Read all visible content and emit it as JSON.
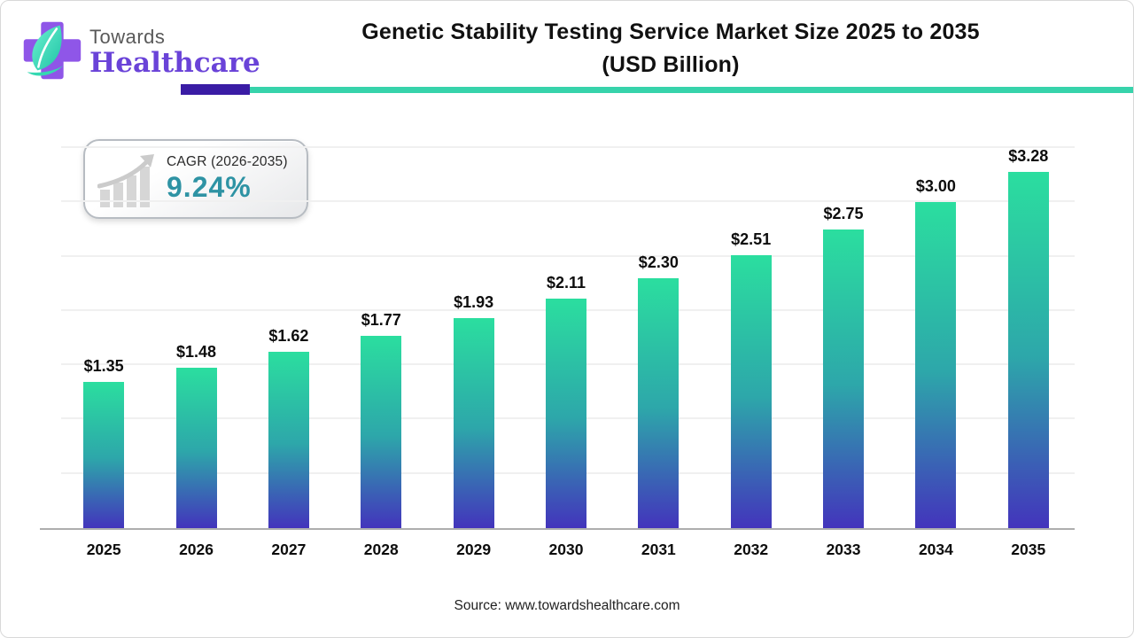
{
  "logo": {
    "line1": "Towards",
    "line2": "Healthcare"
  },
  "title": {
    "line1": "Genetic Stability Testing Service Market Size 2025 to 2035",
    "line2": "(USD Billion)"
  },
  "cagr_badge": {
    "label": "CAGR (2026-2035)",
    "value": "9.24%"
  },
  "source_text": "Source: www.towardshealthcare.com",
  "colors": {
    "bar_gradient_top": "#2BDE9F",
    "bar_gradient_mid": "#2DA7AA",
    "bar_gradient_bottom": "#4334BC",
    "accent_rule_purple": "#3A1CA5",
    "accent_rule_teal": "#37D3AB",
    "cagr_value_teal": "#2E93A4",
    "logo_purple": "#6A43D8",
    "logo_cross_purple": "#8F56E8",
    "logo_leaf_teal": "#35D9B2",
    "gridline": "#f0f0f0",
    "baseline": "#aeaeae"
  },
  "chart_data": {
    "type": "bar",
    "title": "Genetic Stability Testing Service Market Size 2025 to 2035 (USD Billion)",
    "unit": "USD Billion",
    "categories": [
      "2025",
      "2026",
      "2027",
      "2028",
      "2029",
      "2030",
      "2031",
      "2032",
      "2033",
      "2034",
      "2035"
    ],
    "values": [
      1.35,
      1.48,
      1.62,
      1.77,
      1.93,
      2.11,
      2.3,
      2.51,
      2.75,
      3.0,
      3.28
    ],
    "display_labels": [
      "$1.35",
      "$1.48",
      "$1.62",
      "$1.77",
      "$1.93",
      "$2.11",
      "$2.30",
      "$2.51",
      "$2.75",
      "$3.00",
      "$3.28"
    ],
    "xlabel": "",
    "ylabel": "",
    "ylim": [
      0,
      3.5
    ],
    "grid_interval": 0.5,
    "grid": "horizontal, faint, no tick labels",
    "legend": "none",
    "annotation_cagr": "CAGR (2026-2035) 9.24%"
  }
}
